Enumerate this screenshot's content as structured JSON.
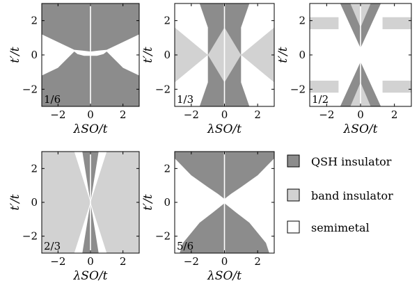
{
  "figure": {
    "legend": [
      {
        "label": "QSH insulator",
        "color": "#8c8c8c"
      },
      {
        "label": "band insulator",
        "color": "#d2d2d2"
      },
      {
        "label": "semimetal",
        "color": "#ffffff"
      }
    ]
  },
  "chart_data": [
    {
      "type": "heatmap",
      "panel_label": "1/6",
      "xlabel": "λSO/t",
      "ylabel": "t′/t",
      "xlim": [
        -3,
        3
      ],
      "ylim": [
        -3,
        3
      ],
      "xticks": [
        "−2",
        "0",
        "2"
      ],
      "yticks": [
        "2",
        "0",
        "−2"
      ],
      "regions": [
        {
          "phase": "QSH insulator",
          "description": "upper bowl: t′/t above ~0.2 at λ=0, boundary rising to 1.2 at |λ|=3"
        },
        {
          "phase": "QSH insulator",
          "description": "lower bowl: t′/t below ~0 at λ=0, boundary falling to −1.2 at |λ|=3"
        },
        {
          "phase": "semimetal",
          "description": "band between the two QSH regions"
        }
      ]
    },
    {
      "type": "heatmap",
      "panel_label": "1/3",
      "xlabel": "λSO/t",
      "ylabel": "t′/t",
      "xlim": [
        -3,
        3
      ],
      "ylim": [
        -3,
        3
      ],
      "xticks": [
        "−2",
        "0",
        "2"
      ],
      "yticks": [
        "2",
        "0",
        "−2"
      ],
      "regions": [
        {
          "phase": "QSH insulator",
          "description": "vertical band around λ=0 widening from |λ|≈1 at top/bottom to the diamond"
        },
        {
          "phase": "band insulator",
          "description": "central diamond with vertices at t′/t=±1.6 and λ/t=±1"
        },
        {
          "phase": "band insulator",
          "description": "side wedges for |λ|>1 around t′/t=0"
        },
        {
          "phase": "semimetal",
          "description": "remaining corners"
        }
      ]
    },
    {
      "type": "heatmap",
      "panel_label": "1/2",
      "xlabel": "λSO/t",
      "ylabel": "t′/t",
      "xlim": [
        -3,
        3
      ],
      "ylim": [
        -3,
        3
      ],
      "xticks": [
        "−2",
        "0",
        "2"
      ],
      "yticks": [
        "2",
        "0",
        "−2"
      ],
      "regions": [
        {
          "phase": "QSH insulator",
          "description": "V-shaped bands meeting at λ=0 near t′/t=±0.4"
        },
        {
          "phase": "band insulator",
          "description": "small triangles at top and bottom center and edge patches near t′/t=±1.8"
        },
        {
          "phase": "semimetal",
          "description": "large remaining area"
        }
      ]
    },
    {
      "type": "heatmap",
      "panel_label": "2/3",
      "xlabel": "λSO/t",
      "ylabel": "t′/t",
      "xlim": [
        -3,
        3
      ],
      "ylim": [
        -3,
        3
      ],
      "xticks": [
        "−2",
        "0",
        "2"
      ],
      "yticks": [
        "2",
        "0",
        "−2"
      ],
      "regions": [
        {
          "phase": "QSH insulator",
          "description": "narrow vertical stripes at |λ|<0.5 pinched at t′/t=0"
        },
        {
          "phase": "band insulator",
          "description": "large regions filling most of the plane"
        },
        {
          "phase": "semimetal",
          "description": "thin wedges between QSH and band insulator"
        }
      ]
    },
    {
      "type": "heatmap",
      "panel_label": "5/6",
      "xlabel": "λSO/t",
      "ylabel": "t′/t",
      "xlim": [
        -3,
        3
      ],
      "ylim": [
        -3,
        3
      ],
      "xticks": [
        "−2",
        "0",
        "2"
      ],
      "yticks": [
        "2",
        "0",
        "−2"
      ],
      "regions": [
        {
          "phase": "QSH insulator",
          "description": "upper fan opening from t′/t≈0.2 at λ=0 to full width at t′/t=3"
        },
        {
          "phase": "QSH insulator",
          "description": "lower fan opening from t′/t≈0 at λ=0 to full width at t′/t=−3"
        },
        {
          "phase": "semimetal",
          "description": "horizontal band around t′/t=0"
        }
      ]
    }
  ]
}
